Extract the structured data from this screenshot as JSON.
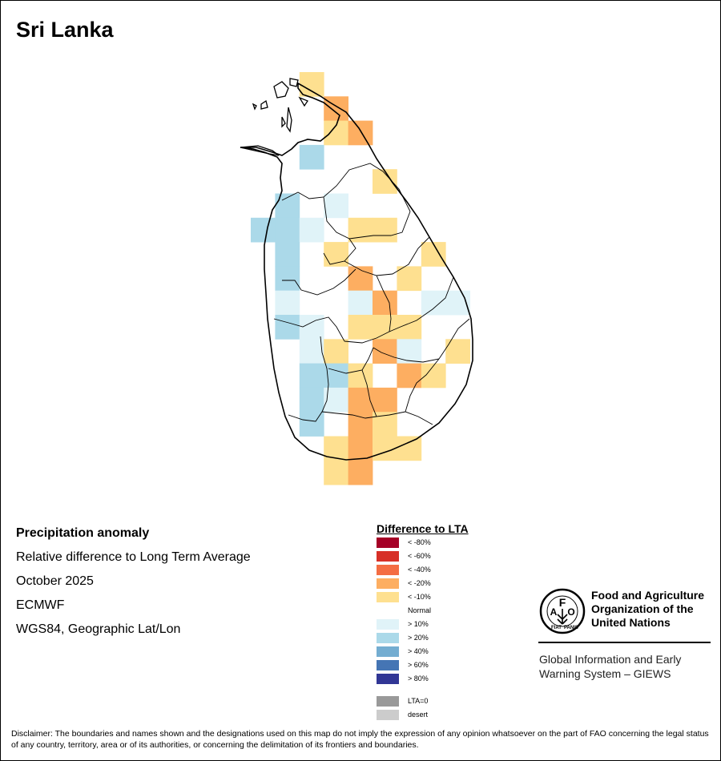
{
  "title": "Sri Lanka",
  "info": {
    "heading": "Precipitation anomaly",
    "subtitle": "Relative difference to Long Term Average",
    "date": "October 2025",
    "model": "ECMWF",
    "projection": "WGS84, Geographic Lat/Lon"
  },
  "legend": {
    "title": "Difference to LTA",
    "items": [
      {
        "label": "< -80%",
        "color": "#a50026"
      },
      {
        "label": "< -60%",
        "color": "#d73027"
      },
      {
        "label": "< -40%",
        "color": "#f46d43"
      },
      {
        "label": "< -20%",
        "color": "#fdae61"
      },
      {
        "label": "< -10%",
        "color": "#fee090"
      },
      {
        "label": "Normal",
        "color": "#ffffff"
      },
      {
        "label": "> 10%",
        "color": "#e0f3f8"
      },
      {
        "label": "> 20%",
        "color": "#abd9e9"
      },
      {
        "label": "> 40%",
        "color": "#74add1"
      },
      {
        "label": "> 60%",
        "color": "#4575b4"
      },
      {
        "label": "> 80%",
        "color": "#313695"
      },
      {
        "label": "LTA=0",
        "color": "#999999"
      },
      {
        "label": "desert",
        "color": "#cccccc"
      }
    ]
  },
  "logo": {
    "icon": "fao-emblem-icon",
    "name_lines": [
      "Food and Agriculture",
      "Organization of the",
      "United Nations"
    ],
    "program_lines": [
      "Global Information and Early",
      "Warning System – GIEWS"
    ]
  },
  "disclaimer": "Disclaimer: The boundaries and names shown and the designations used on this map do not imply the expression of any opinion whatsoever on the part of FAO concerning the legal status of any country, territory, area or of its authorities, or concerning the delimitation of its frontiers and boundaries.",
  "anomaly_grid": {
    "columns": 9,
    "rows": 17,
    "cells": [
      {
        "col": 2,
        "row": 0,
        "cls": "< -10%"
      },
      {
        "col": 3,
        "row": 1,
        "cls": "< -20%"
      },
      {
        "col": 3,
        "row": 2,
        "cls": "< -10%"
      },
      {
        "col": 4,
        "row": 2,
        "cls": "< -20%"
      },
      {
        "col": 2,
        "row": 3,
        "cls": "> 20%"
      },
      {
        "col": 5,
        "row": 4,
        "cls": "< -10%"
      },
      {
        "col": 1,
        "row": 5,
        "cls": "> 20%"
      },
      {
        "col": 3,
        "row": 5,
        "cls": "> 10%"
      },
      {
        "col": 0,
        "row": 6,
        "cls": "> 20%"
      },
      {
        "col": 1,
        "row": 6,
        "cls": "> 20%"
      },
      {
        "col": 2,
        "row": 6,
        "cls": "> 10%"
      },
      {
        "col": 4,
        "row": 6,
        "cls": "< -10%"
      },
      {
        "col": 5,
        "row": 6,
        "cls": "< -10%"
      },
      {
        "col": 1,
        "row": 7,
        "cls": "> 20%"
      },
      {
        "col": 3,
        "row": 7,
        "cls": "< -10%"
      },
      {
        "col": 7,
        "row": 7,
        "cls": "< -10%"
      },
      {
        "col": 1,
        "row": 8,
        "cls": "> 20%"
      },
      {
        "col": 4,
        "row": 8,
        "cls": "< -20%"
      },
      {
        "col": 6,
        "row": 8,
        "cls": "< -10%"
      },
      {
        "col": 1,
        "row": 9,
        "cls": "> 10%"
      },
      {
        "col": 4,
        "row": 9,
        "cls": "> 10%"
      },
      {
        "col": 5,
        "row": 9,
        "cls": "< -20%"
      },
      {
        "col": 7,
        "row": 9,
        "cls": "> 10%"
      },
      {
        "col": 8,
        "row": 9,
        "cls": "> 10%"
      },
      {
        "col": 1,
        "row": 10,
        "cls": "> 20%"
      },
      {
        "col": 2,
        "row": 10,
        "cls": "> 10%"
      },
      {
        "col": 4,
        "row": 10,
        "cls": "< -10%"
      },
      {
        "col": 5,
        "row": 10,
        "cls": "< -10%"
      },
      {
        "col": 6,
        "row": 10,
        "cls": "< -10%"
      },
      {
        "col": 2,
        "row": 11,
        "cls": "> 10%"
      },
      {
        "col": 3,
        "row": 11,
        "cls": "< -10%"
      },
      {
        "col": 5,
        "row": 11,
        "cls": "< -20%"
      },
      {
        "col": 6,
        "row": 11,
        "cls": "> 10%"
      },
      {
        "col": 8,
        "row": 11,
        "cls": "< -10%"
      },
      {
        "col": 2,
        "row": 12,
        "cls": "> 20%"
      },
      {
        "col": 3,
        "row": 12,
        "cls": "> 20%"
      },
      {
        "col": 4,
        "row": 12,
        "cls": "< -10%"
      },
      {
        "col": 6,
        "row": 12,
        "cls": "< -20%"
      },
      {
        "col": 7,
        "row": 12,
        "cls": "< -10%"
      },
      {
        "col": 2,
        "row": 13,
        "cls": "> 20%"
      },
      {
        "col": 3,
        "row": 13,
        "cls": "> 10%"
      },
      {
        "col": 4,
        "row": 13,
        "cls": "< -20%"
      },
      {
        "col": 5,
        "row": 13,
        "cls": "< -20%"
      },
      {
        "col": 2,
        "row": 14,
        "cls": "> 20%"
      },
      {
        "col": 4,
        "row": 14,
        "cls": "< -20%"
      },
      {
        "col": 5,
        "row": 14,
        "cls": "< -10%"
      },
      {
        "col": 3,
        "row": 15,
        "cls": "< -10%"
      },
      {
        "col": 4,
        "row": 15,
        "cls": "< -20%"
      },
      {
        "col": 5,
        "row": 15,
        "cls": "< -10%"
      },
      {
        "col": 6,
        "row": 15,
        "cls": "< -10%"
      },
      {
        "col": 3,
        "row": 16,
        "cls": "< -10%"
      },
      {
        "col": 4,
        "row": 16,
        "cls": "< -20%"
      }
    ]
  }
}
